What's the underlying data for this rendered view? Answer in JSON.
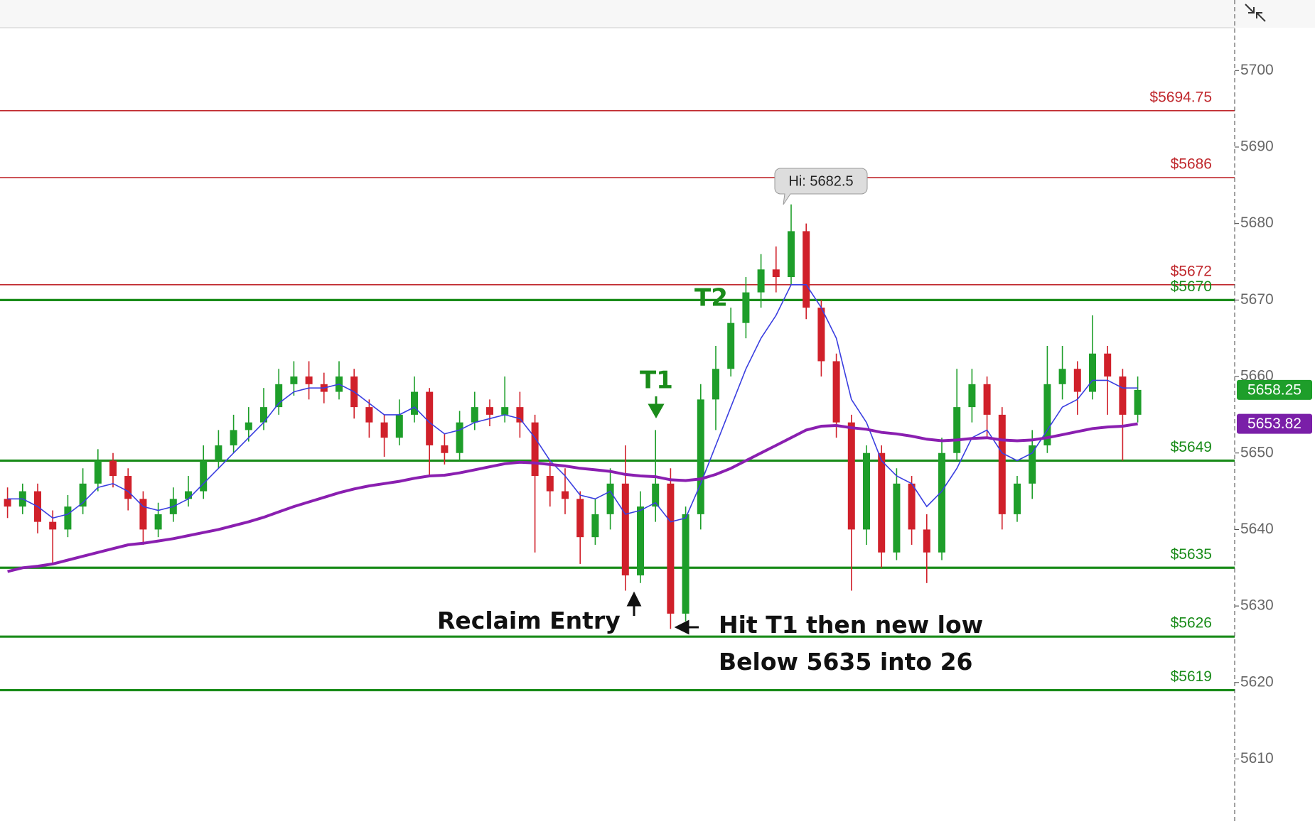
{
  "chart_data": {
    "type": "candlestick",
    "up_color": "#1e9e2a",
    "down_color": "#d0202a",
    "open": [
      5644,
      5643,
      5645,
      5641,
      5640,
      5643,
      5646,
      5649,
      5647,
      5644,
      5640,
      5642,
      5644,
      5645,
      5649,
      5651,
      5653,
      5654,
      5656,
      5659,
      5660,
      5659,
      5658,
      5660,
      5656,
      5654,
      5652,
      5655,
      5658,
      5651,
      5650,
      5654,
      5656,
      5655,
      5656,
      5654,
      5647,
      5645,
      5644,
      5639,
      5642,
      5646,
      5634,
      5643,
      5646,
      5629,
      5642,
      5657,
      5661,
      5667,
      5671,
      5674,
      5673,
      5679,
      5669,
      5662,
      5654,
      5640,
      5650,
      5637,
      5646,
      5640,
      5637,
      5650,
      5656,
      5659,
      5655,
      5642,
      5646,
      5651,
      5659,
      5661,
      5658,
      5663,
      5660,
      5655
    ],
    "high": [
      5645.5,
      5646,
      5646,
      5642.5,
      5644.5,
      5648,
      5650.5,
      5650,
      5648,
      5645,
      5643.5,
      5645.5,
      5647,
      5651,
      5653,
      5655,
      5656,
      5658.5,
      5661,
      5662,
      5662,
      5660.5,
      5662,
      5661,
      5657,
      5655,
      5657,
      5660,
      5658.5,
      5652.5,
      5655.5,
      5658,
      5657,
      5660,
      5658,
      5655,
      5649,
      5648,
      5645,
      5644,
      5648,
      5651,
      5645,
      5653,
      5648,
      5643,
      5659,
      5664,
      5669,
      5673,
      5676,
      5677,
      5682.5,
      5680,
      5670,
      5663,
      5655,
      5651,
      5651,
      5648,
      5647,
      5642,
      5652,
      5661,
      5661,
      5660,
      5656,
      5647,
      5653,
      5664,
      5664,
      5662,
      5668,
      5664,
      5661,
      5660
    ],
    "low": [
      5641.5,
      5642,
      5639.5,
      5635.5,
      5639,
      5642,
      5645,
      5645.5,
      5642.5,
      5638,
      5639,
      5641,
      5643,
      5644,
      5648,
      5650,
      5651.5,
      5653,
      5655,
      5657.5,
      5657,
      5656.5,
      5657,
      5654.5,
      5652,
      5649.5,
      5651,
      5654,
      5647,
      5648.5,
      5649,
      5653,
      5653.5,
      5654,
      5652,
      5637,
      5643,
      5642,
      5635.5,
      5638,
      5640,
      5632,
      5633,
      5641,
      5627,
      5628,
      5640,
      5653,
      5660,
      5665,
      5669,
      5671,
      5672,
      5667.5,
      5660,
      5652,
      5632,
      5638,
      5635,
      5636,
      5638,
      5633,
      5636,
      5649,
      5654,
      5652,
      5640,
      5641,
      5644,
      5650,
      5657,
      5655,
      5657,
      5655,
      5649,
      5654
    ],
    "close": [
      5643,
      5645,
      5641,
      5640,
      5643,
      5646,
      5649,
      5647,
      5644,
      5640,
      5642,
      5644,
      5645,
      5649,
      5651,
      5653,
      5654,
      5656,
      5659,
      5660,
      5659,
      5658,
      5660,
      5656,
      5654,
      5652,
      5655,
      5658,
      5651,
      5650,
      5654,
      5656,
      5655,
      5656,
      5654,
      5647,
      5645,
      5644,
      5639,
      5642,
      5646,
      5634,
      5643,
      5646,
      5629,
      5642,
      5657,
      5661,
      5667,
      5671,
      5674,
      5673,
      5679,
      5669,
      5662,
      5654,
      5640,
      5650,
      5637,
      5646,
      5640,
      5637,
      5650,
      5656,
      5659,
      5655,
      5642,
      5646,
      5651,
      5659,
      5661,
      5658,
      5663,
      5660,
      5655,
      5658.25
    ],
    "lines": [
      {
        "color": "#3a3ee0",
        "values": [
          5644,
          5644,
          5643,
          5641.5,
          5642,
          5643.5,
          5645.5,
          5646,
          5645,
          5643,
          5642.5,
          5643,
          5644,
          5646,
          5648,
          5650,
          5652,
          5654,
          5656.5,
          5658,
          5658.5,
          5658.5,
          5659,
          5658,
          5656.5,
          5655,
          5655,
          5656,
          5654,
          5652.5,
          5653,
          5654,
          5654.5,
          5655,
          5654.5,
          5652,
          5649,
          5647,
          5644.5,
          5644,
          5645,
          5642,
          5642.5,
          5643.5,
          5641,
          5641.5,
          5646,
          5651,
          5656,
          5661,
          5665,
          5668,
          5672,
          5672,
          5669,
          5665,
          5657,
          5654,
          5649,
          5647,
          5646,
          5643,
          5645,
          5648,
          5652,
          5653,
          5650,
          5649,
          5650,
          5653,
          5656,
          5657,
          5659.5,
          5659.5,
          5658.5,
          5658.5
        ]
      },
      {
        "color": "#8a1fb0",
        "values": [
          5634.5,
          5635,
          5635.2,
          5635.5,
          5636,
          5636.5,
          5637,
          5637.5,
          5638,
          5638.2,
          5638.5,
          5638.8,
          5639.2,
          5639.6,
          5640,
          5640.5,
          5641,
          5641.6,
          5642.3,
          5643,
          5643.6,
          5644.2,
          5644.8,
          5645.3,
          5645.7,
          5646,
          5646.3,
          5646.7,
          5647,
          5647.1,
          5647.4,
          5647.8,
          5648.2,
          5648.6,
          5648.8,
          5648.7,
          5648.5,
          5648.3,
          5648,
          5647.8,
          5647.6,
          5647.2,
          5647,
          5646.9,
          5646.5,
          5646.4,
          5646.6,
          5647.2,
          5648,
          5649,
          5650,
          5651,
          5652,
          5653,
          5653.5,
          5653.6,
          5653.3,
          5653.1,
          5652.7,
          5652.5,
          5652.2,
          5651.8,
          5651.6,
          5651.7,
          5651.9,
          5652,
          5651.7,
          5651.6,
          5651.7,
          5652,
          5652.4,
          5652.8,
          5653.2,
          5653.4,
          5653.5,
          5653.82
        ]
      }
    ],
    "levels": [
      {
        "value": 5694.75,
        "label": "$5694.75",
        "color": "#c0282d"
      },
      {
        "value": 5686,
        "label": "$5686",
        "color": "#c0282d"
      },
      {
        "value": 5672,
        "label": "$5672",
        "color": "#c0282d"
      },
      {
        "value": 5670,
        "label": "$5670",
        "color": "#1a8c1a"
      },
      {
        "value": 5649,
        "label": "$5649",
        "color": "#1a8c1a"
      },
      {
        "value": 5635,
        "label": "$5635",
        "color": "#1a8c1a"
      },
      {
        "value": 5626,
        "label": "$5626",
        "color": "#1a8c1a"
      },
      {
        "value": 5619,
        "label": "$5619",
        "color": "#1a8c1a"
      }
    ],
    "price_tags": [
      {
        "value": 5658.25,
        "color": "#1e9e2a"
      },
      {
        "value": 5653.82,
        "color": "#7a1fa8"
      }
    ],
    "ylim": [
      5601.5,
      5705.6
    ],
    "yticks": [
      5610,
      5620,
      5630,
      5640,
      5650,
      5660,
      5670,
      5680,
      5690,
      5700
    ],
    "annotations": {
      "high": "Hi: 5682.5",
      "t1": "T1",
      "t2": "T2",
      "entry": "Reclaim Entry",
      "note1": "Hit T1 then new low",
      "note2": "Below 5635 into 26"
    }
  }
}
